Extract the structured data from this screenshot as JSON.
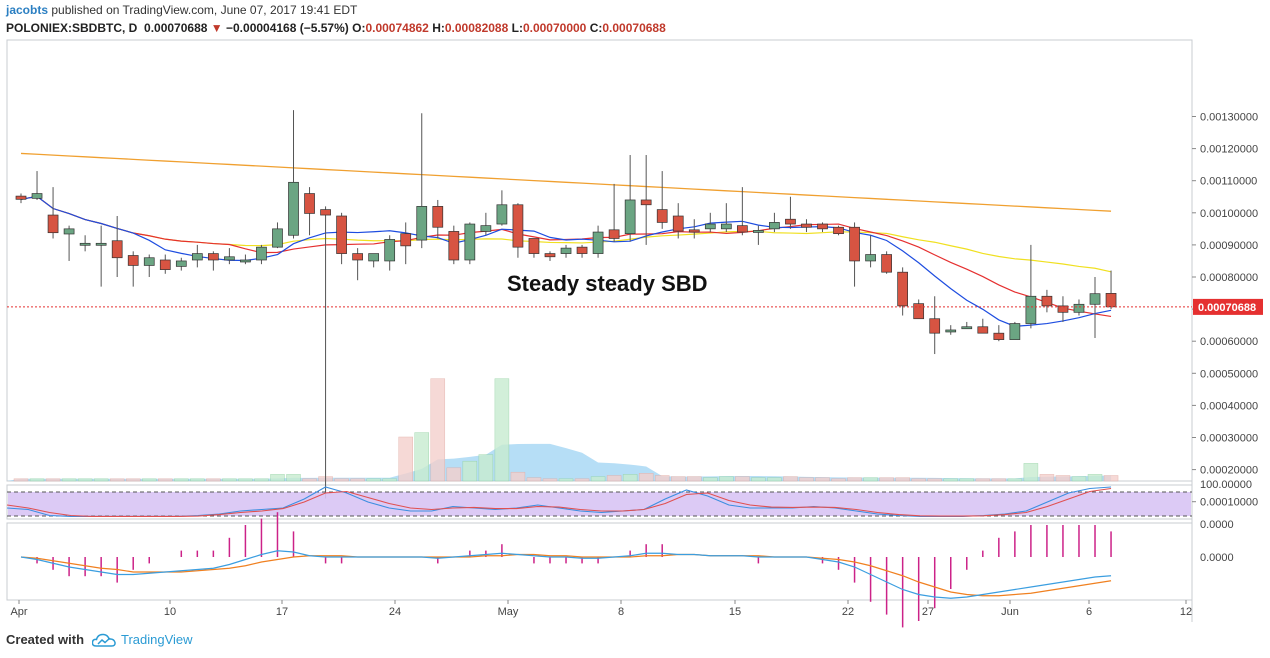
{
  "header": {
    "author": "jacobts",
    "published_text": "published on TradingView.com, June 07, 2017 19:41 EDT",
    "symbol": "POLONIEX:SBDBTC, D",
    "last": "0.00070688",
    "change_arrow": "▼",
    "change": "−0.00004168 (−5.57%)",
    "o_label": "O:",
    "o_value": "0.00074862",
    "h_label": "H:",
    "h_value": "0.00082088",
    "l_label": "L:",
    "l_value": "0.00070000",
    "c_label": "C:",
    "c_value": "0.00070688"
  },
  "footer": {
    "created_with": "Created with",
    "brand": "TradingView",
    "brand_icon": "tradingview-cloud-icon"
  },
  "colors": {
    "up": "#6ba583",
    "down": "#d75442",
    "sma_blue": "#1e4de0",
    "sma_red": "#e53030",
    "sma_yellow": "#f0e020",
    "sma_orange": "#f0a030",
    "volume_area": "#86c8f0",
    "rsi_band": "#d8c4f4",
    "rsi_k": "#3b8ee0",
    "rsi_d": "#e05050",
    "macd_line": "#3b9ee0",
    "macd_signal": "#f08020",
    "hist": "#cc2288",
    "price_tag": "#e53030"
  },
  "chart_data": {
    "type": "candlestick",
    "annotation": "Steady steady SBD",
    "last_price_label": "0.00070688",
    "y_ticks": [
      "0.00130000",
      "0.00120000",
      "0.00110000",
      "0.00100000",
      "0.00090000",
      "0.00080000",
      "0.00070000",
      "0.00060000",
      "0.00050000",
      "0.00040000",
      "0.00030000",
      "0.00020000",
      "0.00010000"
    ],
    "rsi_ticks": [
      "100.00000",
      "0.0000"
    ],
    "macd_ticks": [
      "0.0000"
    ],
    "x_ticks": [
      "Apr",
      "10",
      "17",
      "24",
      "May",
      "8",
      "15",
      "22",
      "27",
      "Jun",
      "6",
      "12"
    ],
    "candles": [
      {
        "o": 1.052,
        "c": 1.042,
        "h": 1.06,
        "l": 1.03
      },
      {
        "o": 1.045,
        "c": 1.06,
        "h": 1.13,
        "l": 1.04
      },
      {
        "o": 0.993,
        "c": 0.938,
        "h": 1.08,
        "l": 0.92
      },
      {
        "o": 0.934,
        "c": 0.95,
        "h": 0.96,
        "l": 0.85
      },
      {
        "o": 0.905,
        "c": 0.905,
        "h": 0.93,
        "l": 0.88
      },
      {
        "o": 0.905,
        "c": 0.905,
        "h": 0.96,
        "l": 0.77
      },
      {
        "o": 0.913,
        "c": 0.86,
        "h": 0.99,
        "l": 0.8
      },
      {
        "o": 0.867,
        "c": 0.836,
        "h": 0.88,
        "l": 0.77
      },
      {
        "o": 0.836,
        "c": 0.86,
        "h": 0.87,
        "l": 0.8
      },
      {
        "o": 0.853,
        "c": 0.823,
        "h": 0.87,
        "l": 0.81
      },
      {
        "o": 0.833,
        "c": 0.85,
        "h": 0.86,
        "l": 0.82
      },
      {
        "o": 0.853,
        "c": 0.873,
        "h": 0.9,
        "l": 0.83
      },
      {
        "o": 0.873,
        "c": 0.853,
        "h": 0.88,
        "l": 0.82
      },
      {
        "o": 0.853,
        "c": 0.863,
        "h": 0.89,
        "l": 0.84
      },
      {
        "o": 0.853,
        "c": 0.853,
        "h": 0.87,
        "l": 0.84
      },
      {
        "o": 0.853,
        "c": 0.893,
        "h": 0.9,
        "l": 0.84
      },
      {
        "o": 0.893,
        "c": 0.95,
        "h": 0.97,
        "l": 0.89
      },
      {
        "o": 0.93,
        "c": 1.095,
        "h": 1.32,
        "l": 0.92
      },
      {
        "o": 1.06,
        "c": 0.998,
        "h": 1.08,
        "l": 0.93
      },
      {
        "o": 1.01,
        "c": 0.993,
        "h": 1.02,
        "l": 0.11
      },
      {
        "o": 0.99,
        "c": 0.873,
        "h": 1.0,
        "l": 0.84
      },
      {
        "o": 0.873,
        "c": 0.853,
        "h": 0.89,
        "l": 0.79
      },
      {
        "o": 0.85,
        "c": 0.873,
        "h": 0.87,
        "l": 0.83
      },
      {
        "o": 0.85,
        "c": 0.917,
        "h": 0.93,
        "l": 0.82
      },
      {
        "o": 0.935,
        "c": 0.897,
        "h": 0.97,
        "l": 0.84
      },
      {
        "o": 0.915,
        "c": 1.02,
        "h": 1.31,
        "l": 0.89
      },
      {
        "o": 1.02,
        "c": 0.955,
        "h": 1.04,
        "l": 0.92
      },
      {
        "o": 0.942,
        "c": 0.853,
        "h": 0.96,
        "l": 0.84
      },
      {
        "o": 0.853,
        "c": 0.965,
        "h": 0.97,
        "l": 0.84
      },
      {
        "o": 0.942,
        "c": 0.96,
        "h": 1.0,
        "l": 0.93
      },
      {
        "o": 0.965,
        "c": 1.025,
        "h": 1.07,
        "l": 0.96
      },
      {
        "o": 1.025,
        "c": 0.893,
        "h": 1.03,
        "l": 0.86
      },
      {
        "o": 0.92,
        "c": 0.873,
        "h": 0.92,
        "l": 0.86
      },
      {
        "o": 0.873,
        "c": 0.863,
        "h": 0.88,
        "l": 0.85
      },
      {
        "o": 0.873,
        "c": 0.89,
        "h": 0.9,
        "l": 0.86
      },
      {
        "o": 0.893,
        "c": 0.873,
        "h": 0.9,
        "l": 0.86
      },
      {
        "o": 0.873,
        "c": 0.94,
        "h": 0.96,
        "l": 0.86
      },
      {
        "o": 0.947,
        "c": 0.92,
        "h": 1.09,
        "l": 0.91
      },
      {
        "o": 0.935,
        "c": 1.04,
        "h": 1.18,
        "l": 0.91
      },
      {
        "o": 1.04,
        "c": 1.025,
        "h": 1.18,
        "l": 0.9
      },
      {
        "o": 1.01,
        "c": 0.97,
        "h": 1.13,
        "l": 0.95
      },
      {
        "o": 0.99,
        "c": 0.943,
        "h": 1.03,
        "l": 0.92
      },
      {
        "o": 0.947,
        "c": 0.94,
        "h": 0.98,
        "l": 0.92
      },
      {
        "o": 0.95,
        "c": 0.965,
        "h": 1.0,
        "l": 0.94
      },
      {
        "o": 0.95,
        "c": 0.965,
        "h": 1.03,
        "l": 0.94
      },
      {
        "o": 0.96,
        "c": 0.94,
        "h": 1.08,
        "l": 0.93
      },
      {
        "o": 0.945,
        "c": 0.945,
        "h": 0.96,
        "l": 0.9
      },
      {
        "o": 0.95,
        "c": 0.97,
        "h": 1.0,
        "l": 0.94
      },
      {
        "o": 0.98,
        "c": 0.965,
        "h": 1.05,
        "l": 0.95
      },
      {
        "o": 0.965,
        "c": 0.955,
        "h": 0.98,
        "l": 0.94
      },
      {
        "o": 0.965,
        "c": 0.95,
        "h": 0.97,
        "l": 0.94
      },
      {
        "o": 0.955,
        "c": 0.935,
        "h": 0.96,
        "l": 0.93
      },
      {
        "o": 0.955,
        "c": 0.85,
        "h": 0.97,
        "l": 0.77
      },
      {
        "o": 0.85,
        "c": 0.87,
        "h": 0.93,
        "l": 0.83
      },
      {
        "o": 0.87,
        "c": 0.815,
        "h": 0.88,
        "l": 0.81
      },
      {
        "o": 0.815,
        "c": 0.71,
        "h": 0.83,
        "l": 0.68
      },
      {
        "o": 0.717,
        "c": 0.67,
        "h": 0.73,
        "l": 0.67
      },
      {
        "o": 0.67,
        "c": 0.625,
        "h": 0.74,
        "l": 0.56
      },
      {
        "o": 0.635,
        "c": 0.635,
        "h": 0.65,
        "l": 0.62
      },
      {
        "o": 0.645,
        "c": 0.645,
        "h": 0.66,
        "l": 0.64
      },
      {
        "o": 0.645,
        "c": 0.625,
        "h": 0.67,
        "l": 0.63
      },
      {
        "o": 0.625,
        "c": 0.605,
        "h": 0.65,
        "l": 0.6
      },
      {
        "o": 0.605,
        "c": 0.655,
        "h": 0.66,
        "l": 0.61
      },
      {
        "o": 0.655,
        "c": 0.74,
        "h": 0.9,
        "l": 0.64
      },
      {
        "o": 0.74,
        "c": 0.71,
        "h": 0.76,
        "l": 0.69
      },
      {
        "o": 0.71,
        "c": 0.69,
        "h": 0.74,
        "l": 0.66
      },
      {
        "o": 0.69,
        "c": 0.715,
        "h": 0.73,
        "l": 0.68
      },
      {
        "o": 0.715,
        "c": 0.748,
        "h": 0.8,
        "l": 0.61
      },
      {
        "o": 0.749,
        "c": 0.707,
        "h": 0.82,
        "l": 0.7
      }
    ],
    "volume": [
      0.02,
      0.02,
      0.02,
      0.02,
      0.02,
      0.02,
      0.02,
      0.02,
      0.02,
      0.02,
      0.02,
      0.02,
      0.02,
      0.02,
      0.02,
      0.02,
      0.06,
      0.06,
      0.02,
      0.04,
      0.02,
      0.02,
      0.02,
      0.02,
      0.4,
      0.44,
      0.93,
      0.12,
      0.18,
      0.24,
      0.93,
      0.08,
      0.03,
      0.02,
      0.02,
      0.02,
      0.04,
      0.05,
      0.06,
      0.07,
      0.05,
      0.04,
      0.04,
      0.03,
      0.04,
      0.04,
      0.03,
      0.03,
      0.04,
      0.03,
      0.03,
      0.02,
      0.03,
      0.03,
      0.03,
      0.03,
      0.02,
      0.02,
      0.02,
      0.02,
      0.02,
      0.02,
      0.02,
      0.16,
      0.06,
      0.05,
      0.04,
      0.06,
      0.05
    ],
    "volume_max": 1.0
  }
}
